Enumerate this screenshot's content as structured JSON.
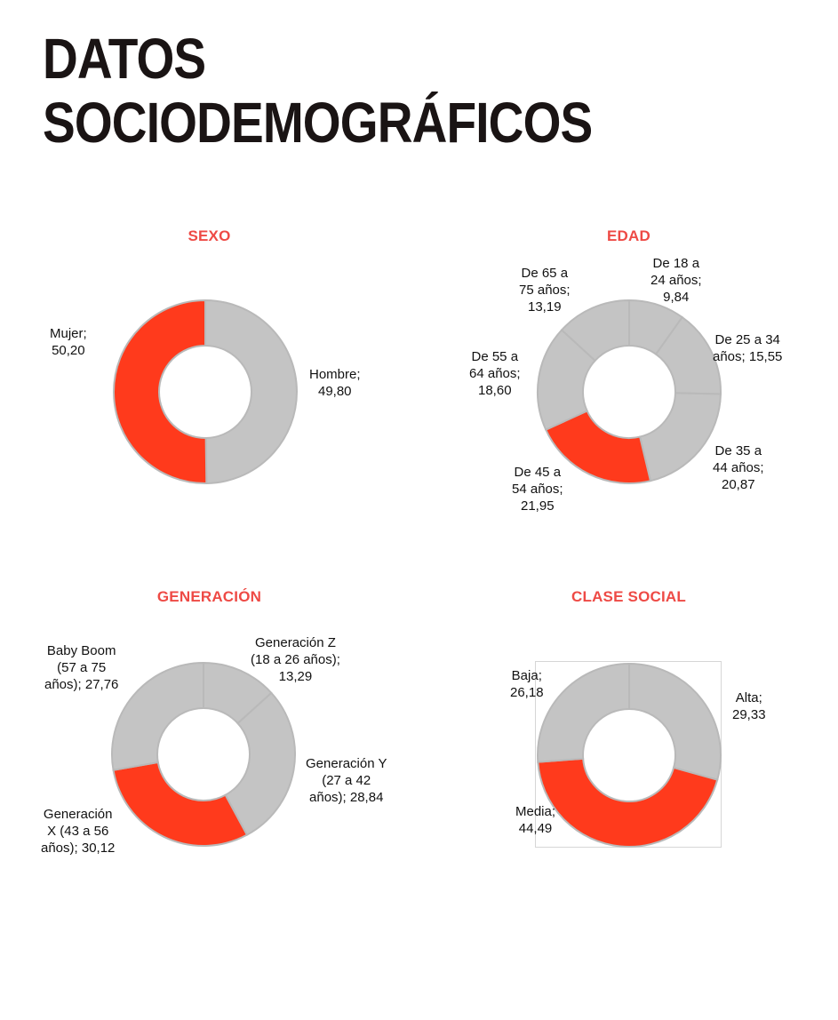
{
  "page": {
    "title_line1": "DATOS",
    "title_line2": "SOCIODEMOGRÁFICOS"
  },
  "colors": {
    "highlight": "#ff3a1c",
    "neutral": "#c4c4c4",
    "title": "#ee4a45"
  },
  "chart_data": [
    {
      "type": "pie",
      "variant": "donut",
      "title": "SEXO",
      "slices": [
        {
          "label": "Hombre",
          "value": 49.8,
          "display": "49,80",
          "label_lines": [
            "Hombre;",
            "49,80"
          ],
          "highlight": false
        },
        {
          "label": "Mujer",
          "value": 50.2,
          "display": "50,20",
          "label_lines": [
            "Mujer;",
            "50,20"
          ],
          "highlight": true
        }
      ]
    },
    {
      "type": "pie",
      "variant": "donut",
      "title": "EDAD",
      "slices": [
        {
          "label": "De 18 a 24 años",
          "value": 9.84,
          "display": "9,84",
          "label_lines": [
            "De 18 a",
            "24 años;",
            "9,84"
          ],
          "highlight": false
        },
        {
          "label": "De 25 a 34 años",
          "value": 15.55,
          "display": "15,55",
          "label_lines": [
            "De 25 a 34",
            "años; 15,55"
          ],
          "highlight": false
        },
        {
          "label": "De 35 a 44 años",
          "value": 20.87,
          "display": "20,87",
          "label_lines": [
            "De 35 a",
            "44 años;",
            "20,87"
          ],
          "highlight": false
        },
        {
          "label": "De 45 a 54 años",
          "value": 21.95,
          "display": "21,95",
          "label_lines": [
            "De 45 a",
            "54 años;",
            "21,95"
          ],
          "highlight": true
        },
        {
          "label": "De 55 a 64 años",
          "value": 18.6,
          "display": "18,60",
          "label_lines": [
            "De 55 a",
            "64 años;",
            "18,60"
          ],
          "highlight": false
        },
        {
          "label": "De 65 a 75 años",
          "value": 13.19,
          "display": "13,19",
          "label_lines": [
            "De 65 a",
            "75 años;",
            "13,19"
          ],
          "highlight": false
        }
      ]
    },
    {
      "type": "pie",
      "variant": "donut",
      "title": "GENERACIÓN",
      "slices": [
        {
          "label": "Generación Z (18 a 26 años)",
          "value": 13.29,
          "display": "13,29",
          "label_lines": [
            "Generación Z",
            "(18 a 26 años);",
            "13,29"
          ],
          "highlight": false
        },
        {
          "label": "Generación Y (27 a 42 años)",
          "value": 28.84,
          "display": "28,84",
          "label_lines": [
            "Generación Y",
            "(27 a 42",
            "años); 28,84"
          ],
          "highlight": false
        },
        {
          "label": "Generación X (43 a 56 años)",
          "value": 30.12,
          "display": "30,12",
          "label_lines": [
            "Generación",
            "X (43 a 56",
            "años); 30,12"
          ],
          "highlight": true
        },
        {
          "label": "Baby Boom (57 a 75 años)",
          "value": 27.76,
          "display": "27,76",
          "label_lines": [
            "Baby Boom",
            "(57 a 75",
            "años); 27,76"
          ],
          "highlight": false
        }
      ]
    },
    {
      "type": "pie",
      "variant": "donut",
      "title": "CLASE SOCIAL",
      "slices": [
        {
          "label": "Alta",
          "value": 29.33,
          "display": "29,33",
          "label_lines": [
            "Alta;",
            "29,33"
          ],
          "highlight": false
        },
        {
          "label": "Media",
          "value": 44.49,
          "display": "44,49",
          "label_lines": [
            "Media;",
            "44,49"
          ],
          "highlight": true
        },
        {
          "label": "Baja",
          "value": 26.18,
          "display": "26,18",
          "label_lines": [
            "Baja;",
            "26,18"
          ],
          "highlight": false
        }
      ]
    }
  ]
}
